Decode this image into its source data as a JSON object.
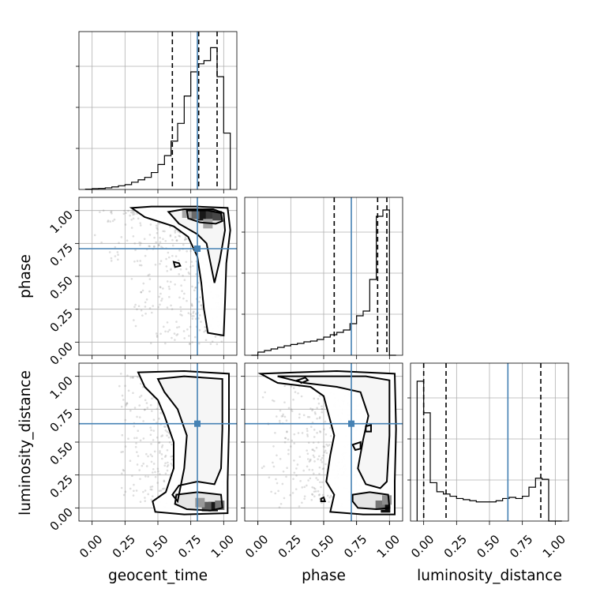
{
  "chart_data": {
    "type": "corner",
    "parameters": [
      "geocent_time",
      "phase",
      "luminosity_distance"
    ],
    "tick_labels": [
      "0.00",
      "0.25",
      "0.50",
      "0.75",
      "1.00"
    ],
    "ticks": [
      0,
      0.25,
      0.5,
      0.75,
      1.0
    ],
    "axis_range": [
      -0.1,
      1.1
    ],
    "truths": {
      "geocent_time": 0.8,
      "phase": 0.71,
      "luminosity_distance": 0.64
    },
    "truth_color": "#4682b4",
    "grid": true,
    "histograms": [
      {
        "parameter": "geocent_time",
        "bin_edges": [
          -0.05,
          0.0,
          0.05,
          0.1,
          0.15,
          0.2,
          0.25,
          0.3,
          0.35,
          0.4,
          0.45,
          0.5,
          0.55,
          0.6,
          0.65,
          0.7,
          0.75,
          0.8,
          0.85,
          0.9,
          0.95,
          1.0,
          1.05
        ],
        "counts": [
          0.2,
          0.5,
          0.6,
          1.0,
          1.6,
          2.3,
          3.0,
          4.5,
          6.0,
          7.5,
          10.5,
          15.5,
          21.0,
          30.0,
          41.0,
          58.0,
          73.0,
          78.0,
          80.0,
          88.0,
          70.0,
          35.0
        ],
        "ymax": 98,
        "quantiles": [
          0.61,
          0.81,
          0.95
        ]
      },
      {
        "parameter": "phase",
        "bin_edges": [
          -0.05,
          0.0,
          0.05,
          0.1,
          0.15,
          0.2,
          0.25,
          0.3,
          0.35,
          0.4,
          0.45,
          0.5,
          0.55,
          0.6,
          0.65,
          0.7,
          0.75,
          0.8,
          0.85,
          0.9,
          0.95,
          1.0,
          1.05
        ],
        "counts": [
          0.0,
          2.0,
          3.0,
          4.0,
          5.0,
          6.0,
          6.8,
          7.5,
          8.5,
          9.0,
          10.0,
          11.5,
          13.0,
          14.5,
          16.0,
          20.0,
          25.0,
          28.0,
          48.0,
          88.0,
          92.0,
          0.0
        ],
        "ymax": 100,
        "quantiles": [
          0.58,
          0.91,
          0.98
        ]
      },
      {
        "parameter": "luminosity_distance",
        "bin_edges": [
          -0.05,
          0.0,
          0.05,
          0.1,
          0.15,
          0.2,
          0.25,
          0.3,
          0.35,
          0.4,
          0.45,
          0.5,
          0.55,
          0.6,
          0.65,
          0.7,
          0.75,
          0.8,
          0.85,
          0.9,
          0.95,
          1.0,
          1.05
        ],
        "counts": [
          62,
          48,
          17,
          13,
          12,
          11,
          10,
          9.5,
          9,
          8.5,
          8.5,
          8.5,
          9,
          10,
          10.5,
          10,
          11,
          15,
          19,
          18.5,
          0,
          0
        ],
        "ymax": 70,
        "quantiles": [
          0.0,
          0.17,
          0.89
        ]
      }
    ],
    "joint": [
      {
        "x": "geocent_time",
        "y": "phase",
        "contours": [
          [
            [
              0.3,
              1.02
            ],
            [
              0.45,
              1.03
            ],
            [
              0.8,
              1.03
            ],
            [
              1.03,
              1.02
            ],
            [
              1.05,
              0.85
            ],
            [
              1.02,
              0.6
            ],
            [
              1.01,
              0.3
            ],
            [
              1.0,
              0.05
            ],
            [
              0.88,
              0.07
            ],
            [
              0.85,
              0.25
            ],
            [
              0.83,
              0.45
            ],
            [
              0.8,
              0.65
            ],
            [
              0.73,
              0.8
            ],
            [
              0.62,
              0.88
            ],
            [
              0.4,
              0.95
            ]
          ],
          [
            [
              0.58,
              0.99
            ],
            [
              0.7,
              1.01
            ],
            [
              0.92,
              1.01
            ],
            [
              1.0,
              0.98
            ],
            [
              1.01,
              0.85
            ],
            [
              0.97,
              0.62
            ],
            [
              0.93,
              0.45
            ],
            [
              0.9,
              0.6
            ],
            [
              0.87,
              0.75
            ],
            [
              0.8,
              0.82
            ],
            [
              0.66,
              0.9
            ]
          ],
          [
            [
              0.72,
              1.0
            ],
            [
              0.88,
              1.0
            ],
            [
              0.98,
              0.98
            ],
            [
              0.99,
              0.92
            ],
            [
              0.94,
              0.9
            ],
            [
              0.82,
              0.91
            ],
            [
              0.73,
              0.94
            ]
          ]
        ],
        "small_contours": [
          [
            [
              0.62,
              0.61
            ],
            [
              0.66,
              0.6
            ],
            [
              0.67,
              0.58
            ],
            [
              0.63,
              0.57
            ]
          ]
        ],
        "density": [
          {
            "x": 0.84,
            "y": 0.96,
            "level": 0.9
          },
          {
            "x": 0.9,
            "y": 0.97,
            "level": 0.75
          },
          {
            "x": 0.78,
            "y": 0.97,
            "level": 0.55
          },
          {
            "x": 0.95,
            "y": 0.96,
            "level": 0.7
          },
          {
            "x": 0.72,
            "y": 0.98,
            "level": 0.3
          },
          {
            "x": 0.88,
            "y": 0.9,
            "level": 0.3
          }
        ]
      },
      {
        "x": "geocent_time",
        "y": "luminosity_distance",
        "contours": [
          [
            [
              0.35,
              1.03
            ],
            [
              0.7,
              1.04
            ],
            [
              1.04,
              1.02
            ],
            [
              1.04,
              0.6
            ],
            [
              1.03,
              0.2
            ],
            [
              1.03,
              -0.04
            ],
            [
              0.7,
              -0.05
            ],
            [
              0.48,
              -0.03
            ],
            [
              0.46,
              0.05
            ],
            [
              0.56,
              0.12
            ],
            [
              0.62,
              0.3
            ],
            [
              0.62,
              0.5
            ],
            [
              0.55,
              0.7
            ],
            [
              0.5,
              0.82
            ],
            [
              0.4,
              0.92
            ]
          ],
          [
            [
              0.5,
              0.98
            ],
            [
              0.7,
              1.0
            ],
            [
              0.99,
              0.98
            ],
            [
              0.99,
              0.6
            ],
            [
              0.98,
              0.3
            ],
            [
              0.93,
              0.18
            ],
            [
              0.8,
              0.2
            ],
            [
              0.66,
              0.17
            ],
            [
              0.61,
              0.1
            ],
            [
              0.65,
              0.05
            ],
            [
              0.7,
              0.3
            ],
            [
              0.72,
              0.55
            ],
            [
              0.65,
              0.75
            ],
            [
              0.55,
              0.88
            ]
          ],
          [
            [
              0.64,
              0.1
            ],
            [
              0.8,
              0.12
            ],
            [
              0.98,
              0.1
            ],
            [
              0.99,
              0.0
            ],
            [
              0.9,
              -0.02
            ],
            [
              0.72,
              -0.01
            ],
            [
              0.63,
              0.03
            ]
          ]
        ],
        "small_contours": [],
        "density": [
          {
            "x": 0.92,
            "y": 0.01,
            "level": 0.9
          },
          {
            "x": 0.87,
            "y": 0.01,
            "level": 0.6
          },
          {
            "x": 0.82,
            "y": 0.04,
            "level": 0.35
          },
          {
            "x": 0.97,
            "y": 0.02,
            "level": 0.5
          }
        ]
      },
      {
        "x": "phase",
        "y": "luminosity_distance",
        "contours": [
          [
            [
              0.02,
              1.02
            ],
            [
              0.3,
              1.03
            ],
            [
              0.6,
              1.04
            ],
            [
              1.04,
              1.02
            ],
            [
              1.05,
              0.6
            ],
            [
              1.04,
              0.2
            ],
            [
              1.04,
              -0.05
            ],
            [
              0.8,
              -0.05
            ],
            [
              0.55,
              -0.03
            ],
            [
              0.58,
              0.1
            ],
            [
              0.52,
              0.2
            ],
            [
              0.55,
              0.4
            ],
            [
              0.58,
              0.55
            ],
            [
              0.54,
              0.7
            ],
            [
              0.5,
              0.85
            ],
            [
              0.4,
              0.92
            ],
            [
              0.15,
              0.95
            ]
          ],
          [
            [
              0.15,
              1.0
            ],
            [
              0.45,
              1.0
            ],
            [
              0.82,
              1.0
            ],
            [
              1.0,
              0.97
            ],
            [
              1.0,
              0.55
            ],
            [
              0.98,
              0.2
            ],
            [
              0.93,
              0.15
            ],
            [
              0.82,
              0.18
            ],
            [
              0.76,
              0.3
            ],
            [
              0.8,
              0.52
            ],
            [
              0.84,
              0.7
            ],
            [
              0.78,
              0.88
            ],
            [
              0.6,
              0.92
            ],
            [
              0.35,
              0.95
            ]
          ],
          [
            [
              0.72,
              0.1
            ],
            [
              0.85,
              0.12
            ],
            [
              0.99,
              0.1
            ],
            [
              1.0,
              0.0
            ],
            [
              0.9,
              -0.01
            ],
            [
              0.76,
              0.0
            ],
            [
              0.72,
              0.05
            ]
          ]
        ],
        "small_contours": [
          [
            [
              0.3,
              0.97
            ],
            [
              0.36,
              0.99
            ],
            [
              0.38,
              0.97
            ],
            [
              0.33,
              0.95
            ]
          ],
          [
            [
              0.48,
              0.07
            ],
            [
              0.5,
              0.08
            ],
            [
              0.51,
              0.05
            ],
            [
              0.48,
              0.05
            ]
          ],
          [
            [
              0.72,
              0.48
            ],
            [
              0.78,
              0.5
            ],
            [
              0.78,
              0.45
            ],
            [
              0.74,
              0.44
            ]
          ],
          [
            [
              0.82,
              0.62
            ],
            [
              0.86,
              0.63
            ],
            [
              0.86,
              0.58
            ],
            [
              0.82,
              0.58
            ]
          ]
        ],
        "density": [
          {
            "x": 0.97,
            "y": 0.0,
            "level": 0.95
          },
          {
            "x": 0.93,
            "y": 0.02,
            "level": 0.5
          },
          {
            "x": 0.98,
            "y": 0.06,
            "level": 0.4
          }
        ]
      }
    ]
  }
}
